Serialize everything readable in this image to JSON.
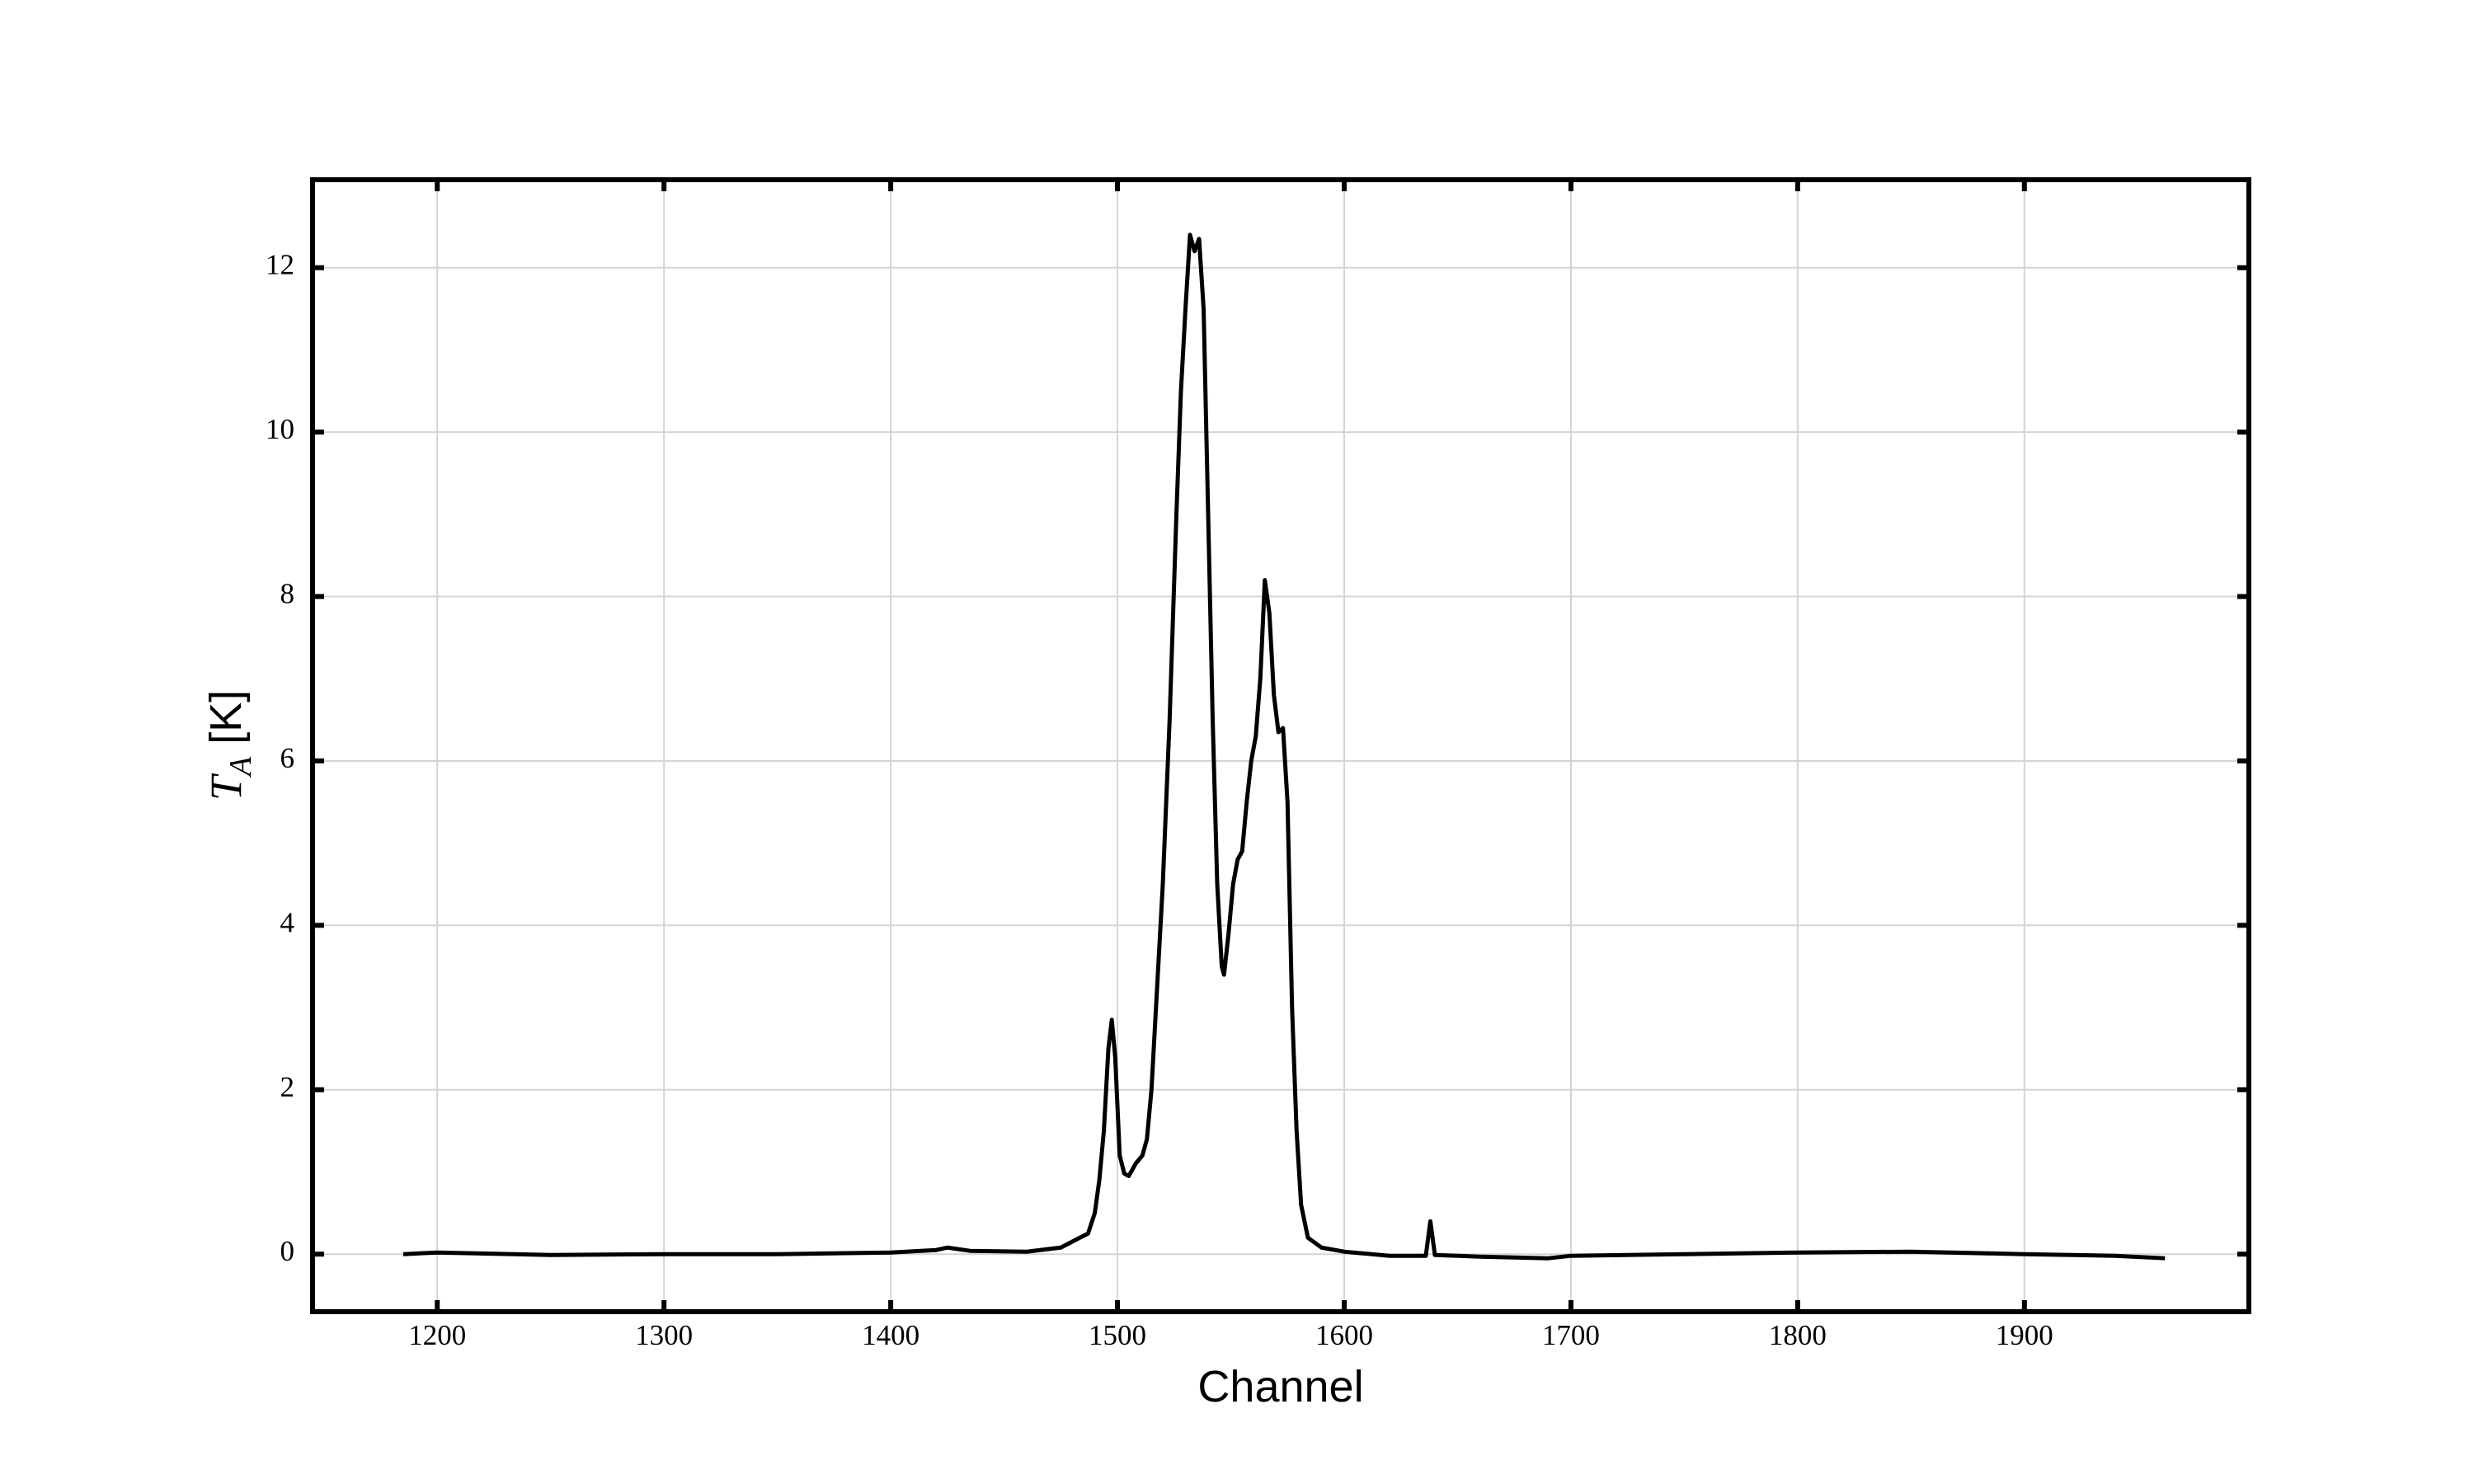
{
  "chart_data": {
    "type": "line",
    "xlabel": "Channel",
    "ylabel": "TA [K]",
    "x": [
      1185,
      1200,
      1250,
      1300,
      1350,
      1400,
      1420,
      1425,
      1435,
      1460,
      1475,
      1482,
      1487,
      1490,
      1492,
      1494,
      1496,
      1497.5,
      1499,
      1501,
      1503,
      1505,
      1508,
      1511,
      1513,
      1515,
      1517,
      1520,
      1523,
      1526,
      1528,
      1530,
      1532,
      1534,
      1536,
      1538,
      1540,
      1542,
      1544,
      1546,
      1547,
      1549,
      1551,
      1553,
      1555,
      1557,
      1559,
      1561,
      1563,
      1565,
      1567,
      1569,
      1571,
      1573,
      1575,
      1577,
      1579,
      1581,
      1584,
      1590,
      1600,
      1620,
      1636,
      1638,
      1640,
      1660,
      1690,
      1700,
      1750,
      1800,
      1850,
      1900,
      1940,
      1962
    ],
    "series": [
      {
        "color": "#000000",
        "values": [
          0.0,
          0.02,
          -0.01,
          0.0,
          0.0,
          0.02,
          0.05,
          0.08,
          0.04,
          0.03,
          0.08,
          0.18,
          0.25,
          0.5,
          0.9,
          1.5,
          2.5,
          2.85,
          2.4,
          1.2,
          0.98,
          0.95,
          1.1,
          1.2,
          1.4,
          2.0,
          3.0,
          4.5,
          6.5,
          9.0,
          10.5,
          11.5,
          12.4,
          12.2,
          12.35,
          11.5,
          9.0,
          6.5,
          4.5,
          3.5,
          3.4,
          3.9,
          4.5,
          4.8,
          4.9,
          5.5,
          6.0,
          6.3,
          7.0,
          8.2,
          7.8,
          6.8,
          6.35,
          6.4,
          5.5,
          3.0,
          1.5,
          0.6,
          0.2,
          0.08,
          0.03,
          -0.02,
          -0.02,
          0.4,
          -0.01,
          -0.03,
          -0.05,
          -0.02,
          0.0,
          0.02,
          0.03,
          0.0,
          -0.02,
          -0.05
        ]
      }
    ],
    "xlim": [
      1145,
      1999
    ],
    "ylim": [
      -0.7,
      13.07
    ],
    "xticks": [
      1200,
      1300,
      1400,
      1500,
      1600,
      1700,
      1800,
      1900
    ],
    "yticks": [
      0,
      2,
      4,
      6,
      8,
      10,
      12
    ],
    "grid": true
  }
}
